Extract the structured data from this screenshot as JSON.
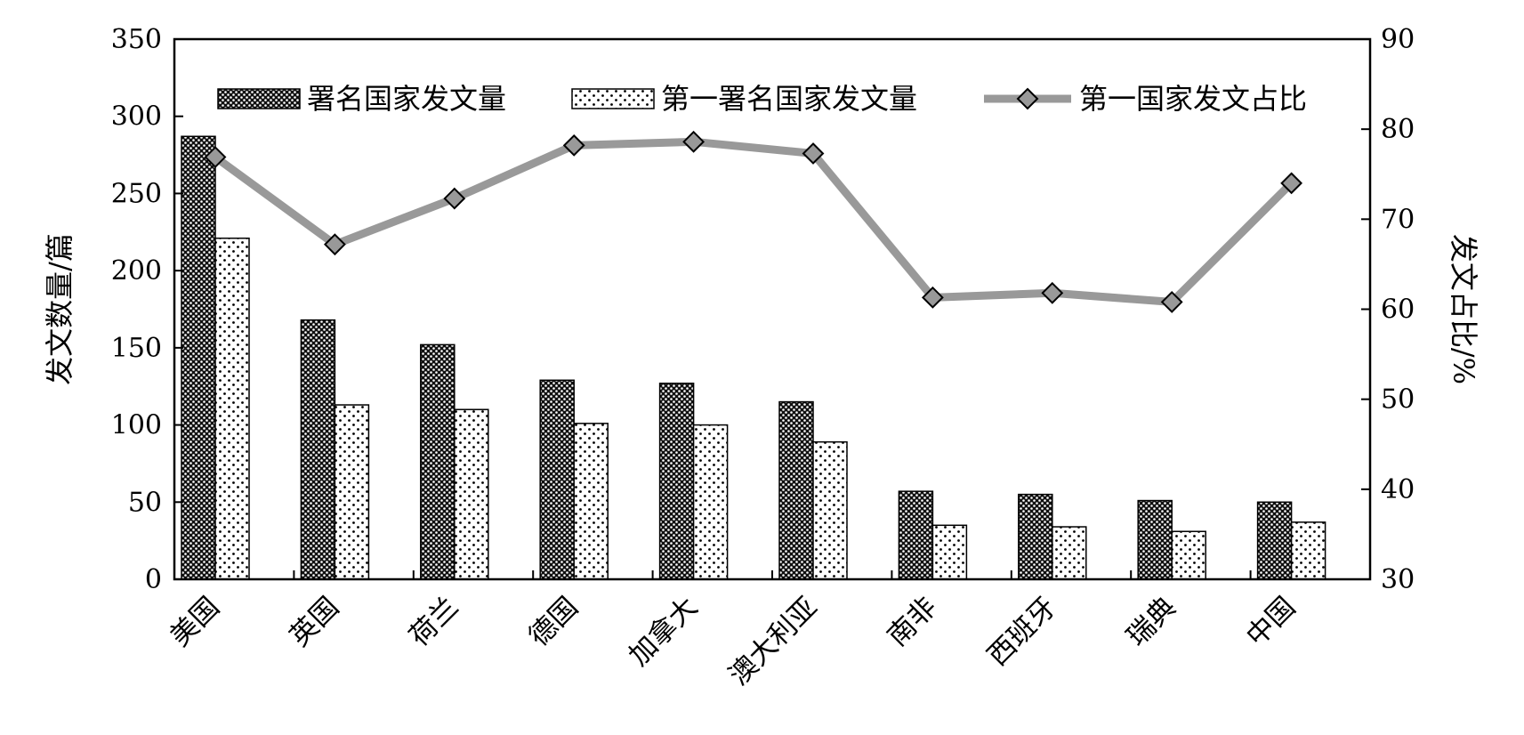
{
  "chart_data": {
    "type": "bar",
    "categories": [
      "美国",
      "英国",
      "荷兰",
      "德国",
      "加拿大",
      "澳大利亚",
      "南非",
      "西班牙",
      "瑞典",
      "中国"
    ],
    "series": [
      {
        "name": "署名国家发文量",
        "type": "bar",
        "axis": "left",
        "pattern": "dense-dots",
        "values": [
          287,
          168,
          152,
          129,
          127,
          115,
          57,
          55,
          51,
          50
        ]
      },
      {
        "name": "第一署名国家发文量",
        "type": "bar",
        "axis": "left",
        "pattern": "sparse-dots",
        "values": [
          221,
          113,
          110,
          101,
          100,
          89,
          35,
          34,
          31,
          37
        ]
      },
      {
        "name": "第一国家发文占比",
        "type": "line",
        "axis": "right",
        "marker": "diamond",
        "values": [
          76.9,
          67.2,
          72.3,
          78.2,
          78.6,
          77.3,
          61.3,
          61.8,
          60.8,
          74.0
        ]
      }
    ],
    "xlabel": "",
    "ylabel": "发文数量/篇",
    "y2label": "发文占比/%",
    "ylim": [
      0,
      350
    ],
    "yticks": [
      0,
      50,
      100,
      150,
      200,
      250,
      300,
      350
    ],
    "y2lim": [
      30,
      90
    ],
    "y2ticks": [
      30,
      40,
      50,
      60,
      70,
      80,
      90
    ],
    "grid": false,
    "legend_position": "top",
    "colors": {
      "bar_dense": "#111111",
      "bar_sparse": "#ffffff",
      "line": "#999999",
      "marker": "#999999"
    }
  }
}
